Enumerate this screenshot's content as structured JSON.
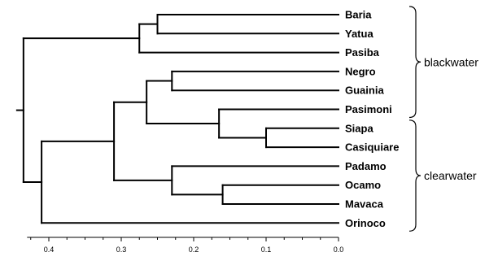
{
  "chart_data": {
    "type": "dendrogram",
    "axis": {
      "range": [
        0.43,
        0.0
      ],
      "ticks": [
        0.4,
        0.3,
        0.2,
        0.1,
        0.0
      ],
      "tick_labels": [
        "0.4",
        "0.3",
        "0.2",
        "0.1",
        "0.0"
      ],
      "minor_step": 0.025
    },
    "leaves": [
      "Baria",
      "Yatua",
      "Pasiba",
      "Negro",
      "Guainia",
      "Pasimoni",
      "Siapa",
      "Casiquiare",
      "Padamo",
      "Ocamo",
      "Mavaca",
      "Orinoco"
    ],
    "merges": [
      {
        "id": "BY",
        "children": [
          "Baria",
          "Yatua"
        ],
        "height": 0.25
      },
      {
        "id": "BYP",
        "children": [
          "BY",
          "Pasiba"
        ],
        "height": 0.275
      },
      {
        "id": "NG",
        "children": [
          "Negro",
          "Guainia"
        ],
        "height": 0.23
      },
      {
        "id": "SC",
        "children": [
          "Siapa",
          "Casiquiare"
        ],
        "height": 0.1
      },
      {
        "id": "PSC",
        "children": [
          "Pasimoni",
          "SC"
        ],
        "height": 0.165
      },
      {
        "id": "NGPSC",
        "children": [
          "NG",
          "PSC"
        ],
        "height": 0.265
      },
      {
        "id": "OM",
        "children": [
          "Ocamo",
          "Mavaca"
        ],
        "height": 0.16
      },
      {
        "id": "POM",
        "children": [
          "Padamo",
          "OM"
        ],
        "height": 0.23
      },
      {
        "id": "UPPER",
        "children": [
          "NGPSC",
          "POM"
        ],
        "height": 0.31
      },
      {
        "id": "ALL3",
        "children": [
          "UPPER",
          "Orinoco"
        ],
        "height": 0.41
      },
      {
        "id": "ROOT",
        "children": [
          "BYP",
          "ALL3"
        ],
        "height": 0.435
      }
    ],
    "groups": [
      {
        "label": "blackwater",
        "first": "Baria",
        "last": "Pasimoni"
      },
      {
        "label": "clearwater",
        "first": "Siapa",
        "last": "Orinoco"
      }
    ]
  }
}
